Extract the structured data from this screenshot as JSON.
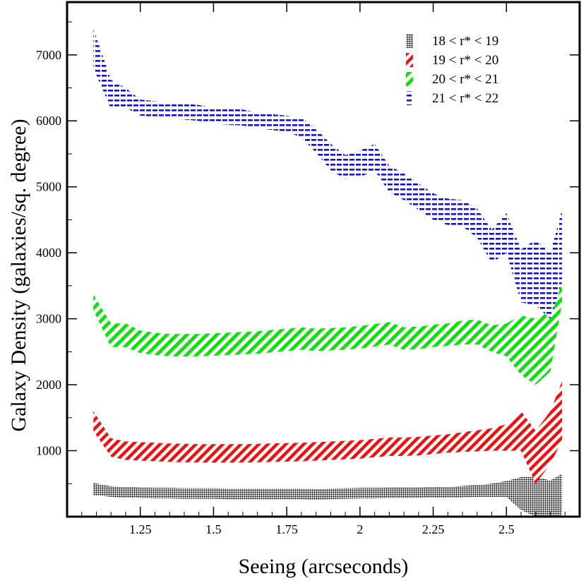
{
  "chart_data": {
    "type": "area",
    "title": "",
    "xlabel": "Seeing (arcseconds)",
    "ylabel": "Galaxy Density (galaxies/sq. degree)",
    "xlim": [
      1.0,
      2.75
    ],
    "ylim": [
      0,
      7800
    ],
    "xticks": [
      1.25,
      1.5,
      1.75,
      2,
      2.25,
      2.5
    ],
    "xtick_labels": [
      "1.25",
      "1.5",
      "1.75",
      "2",
      "2.25",
      "2.5"
    ],
    "yticks": [
      1000,
      2000,
      3000,
      4000,
      5000,
      6000,
      7000
    ],
    "ytick_labels": [
      "1000",
      "2000",
      "3000",
      "4000",
      "5000",
      "6000",
      "7000"
    ],
    "grid": false,
    "legend_position": "top-right",
    "x": [
      1.09,
      1.15,
      1.2,
      1.25,
      1.3,
      1.35,
      1.4,
      1.45,
      1.5,
      1.55,
      1.6,
      1.65,
      1.7,
      1.75,
      1.8,
      1.85,
      1.9,
      1.95,
      2.0,
      2.05,
      2.1,
      2.15,
      2.2,
      2.25,
      2.3,
      2.35,
      2.4,
      2.45,
      2.5,
      2.55,
      2.6,
      2.65,
      2.69
    ],
    "series": [
      {
        "name": "18 < r* < 19",
        "color": "#000000",
        "pattern": "dots",
        "values": [
          420,
          380,
          370,
          360,
          355,
          355,
          350,
          350,
          350,
          345,
          345,
          345,
          345,
          345,
          345,
          340,
          345,
          350,
          355,
          355,
          360,
          360,
          360,
          365,
          370,
          380,
          390,
          400,
          420,
          350,
          300,
          250,
          300
        ],
        "half_width": [
          90,
          80,
          80,
          80,
          80,
          80,
          80,
          80,
          80,
          80,
          80,
          80,
          80,
          80,
          80,
          80,
          80,
          80,
          80,
          80,
          80,
          80,
          80,
          80,
          80,
          85,
          90,
          100,
          120,
          250,
          300,
          300,
          350
        ]
      },
      {
        "name": "19 < r* < 20",
        "color": "#ee1111",
        "pattern": "diagonal",
        "values": [
          1450,
          1050,
          1000,
          990,
          980,
          970,
          965,
          960,
          960,
          960,
          960,
          965,
          970,
          975,
          980,
          990,
          1000,
          1010,
          1020,
          1040,
          1060,
          1060,
          1070,
          1090,
          1110,
          1130,
          1150,
          1170,
          1200,
          1300,
          900,
          1200,
          1600
        ],
        "half_width": [
          150,
          140,
          140,
          140,
          140,
          140,
          140,
          140,
          140,
          140,
          140,
          140,
          140,
          140,
          140,
          140,
          140,
          140,
          140,
          140,
          140,
          140,
          140,
          140,
          140,
          150,
          160,
          170,
          200,
          300,
          400,
          400,
          450
        ]
      },
      {
        "name": "20 < r* < 21",
        "color": "#11dd11",
        "pattern": "diagonal",
        "values": [
          3250,
          2750,
          2750,
          2650,
          2620,
          2600,
          2600,
          2600,
          2610,
          2620,
          2630,
          2640,
          2660,
          2680,
          2700,
          2680,
          2690,
          2700,
          2720,
          2750,
          2780,
          2700,
          2710,
          2740,
          2760,
          2790,
          2800,
          2700,
          2680,
          2600,
          2500,
          2700,
          3800
        ],
        "half_width": [
          120,
          180,
          180,
          170,
          170,
          170,
          170,
          170,
          170,
          170,
          170,
          170,
          170,
          170,
          170,
          170,
          170,
          170,
          170,
          170,
          170,
          170,
          170,
          170,
          170,
          180,
          190,
          200,
          250,
          450,
          500,
          500,
          550
        ]
      },
      {
        "name": "21 < r* < 22",
        "color": "#1111cc",
        "pattern": "horizontal",
        "values": [
          7100,
          6400,
          6350,
          6200,
          6180,
          6160,
          6140,
          6120,
          6080,
          6060,
          6050,
          6010,
          5980,
          5960,
          5900,
          5700,
          5450,
          5300,
          5350,
          5450,
          5120,
          5000,
          4850,
          4700,
          4620,
          4600,
          4450,
          4100,
          4300,
          3650,
          3700,
          3500,
          4100
        ],
        "half_width": [
          300,
          220,
          150,
          120,
          120,
          120,
          120,
          120,
          120,
          120,
          120,
          120,
          120,
          120,
          150,
          180,
          200,
          180,
          200,
          200,
          200,
          200,
          200,
          200,
          200,
          200,
          220,
          250,
          300,
          400,
          500,
          500,
          550
        ]
      }
    ]
  }
}
